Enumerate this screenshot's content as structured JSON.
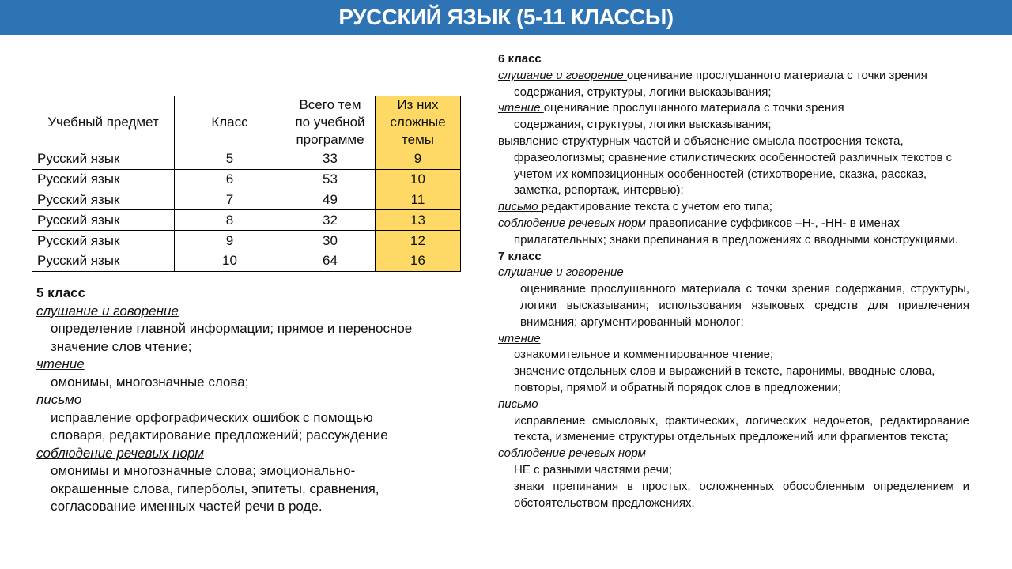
{
  "title": "РУССКИЙ ЯЗЫК (5-11 КЛАССЫ)",
  "colors": {
    "header": "#2e74b5",
    "highlight": "#ffd966"
  },
  "table": {
    "headers": [
      "Учебный предмет",
      "Класс",
      "Всего тем по учебной программе",
      "Из них сложные темы"
    ],
    "rows": [
      [
        "Русский язык",
        "5",
        "33",
        "9"
      ],
      [
        "Русский язык",
        "6",
        "53",
        "10"
      ],
      [
        "Русский язык",
        "7",
        "49",
        "11"
      ],
      [
        "Русский язык",
        "8",
        "32",
        "13"
      ],
      [
        "Русский язык",
        "9",
        "30",
        "12"
      ],
      [
        "Русский язык",
        "10",
        "64",
        "16"
      ]
    ]
  },
  "grade5": {
    "title": "5 класс",
    "listening_label": "слушание и говорение",
    "listening": "определение главной информации; прямое и переносное значение слов чтение;",
    "reading_label": "чтение",
    "reading": "омонимы, многозначные слова;",
    "writing_label": "письмо",
    "writing": "исправление орфографических ошибок с помощью словаря, редактирование предложений; рассуждение",
    "norms_label": "соблюдение речевых норм",
    "norms": "омонимы и многозначные слова; эмоционально-окрашенные слова, гиперболы, эпитеты, сравнения, согласование именных частей речи в роде."
  },
  "grade6": {
    "title": "6 класс",
    "listening_label": "слушание и говорение ",
    "listening": "оценивание прослушанного материала с точки зрения содержания, структуры, логики высказывания;",
    "reading_label": "чтение ",
    "reading": "оценивание прослушанного материала с точки зрения содержания, структуры, логики высказывания;",
    "reading2": "выявление структурных частей и объяснение смысла построения текста, фразеологизмы; сравнение стилистических особенностей различных текстов с учетом их композиционных особенностей (стихотворение, сказка, рассказ, заметка, репортаж, интервью);",
    "writing_label": "письмо ",
    "writing": "редактирование текста с учетом его типа;",
    "norms_label": "соблюдение речевых норм ",
    "norms": "правописание суффиксов –Н-, -НН- в именах прилагательных; знаки препинания в предложениях с вводными конструкциями."
  },
  "grade7": {
    "title": "7 класс",
    "listening_label": "слушание и говорение",
    "listening": "оценивание прослушанного материала с точки зрения содержания, структуры, логики высказывания; использования языковых средств для привлечения внимания; аргументированный монолог;",
    "reading_label": "чтение",
    "reading1": "ознакомительное и комментированное чтение;",
    "reading2": "значение отдельных слов и выражений в тексте, паронимы, вводные слова, повторы, прямой и обратный порядок слов в предложении;",
    "writing_label": "письмо",
    "writing": "исправление смысловых, фактических, логических недочетов, редактирование текста, изменение структуры отдельных предложений или фрагментов текста;",
    "norms_label": "соблюдение речевых норм",
    "norms1": "НЕ с разными частями речи;",
    "norms2": "знаки препинания в простых, осложненных обособленным определением и обстоятельством предложениях."
  }
}
